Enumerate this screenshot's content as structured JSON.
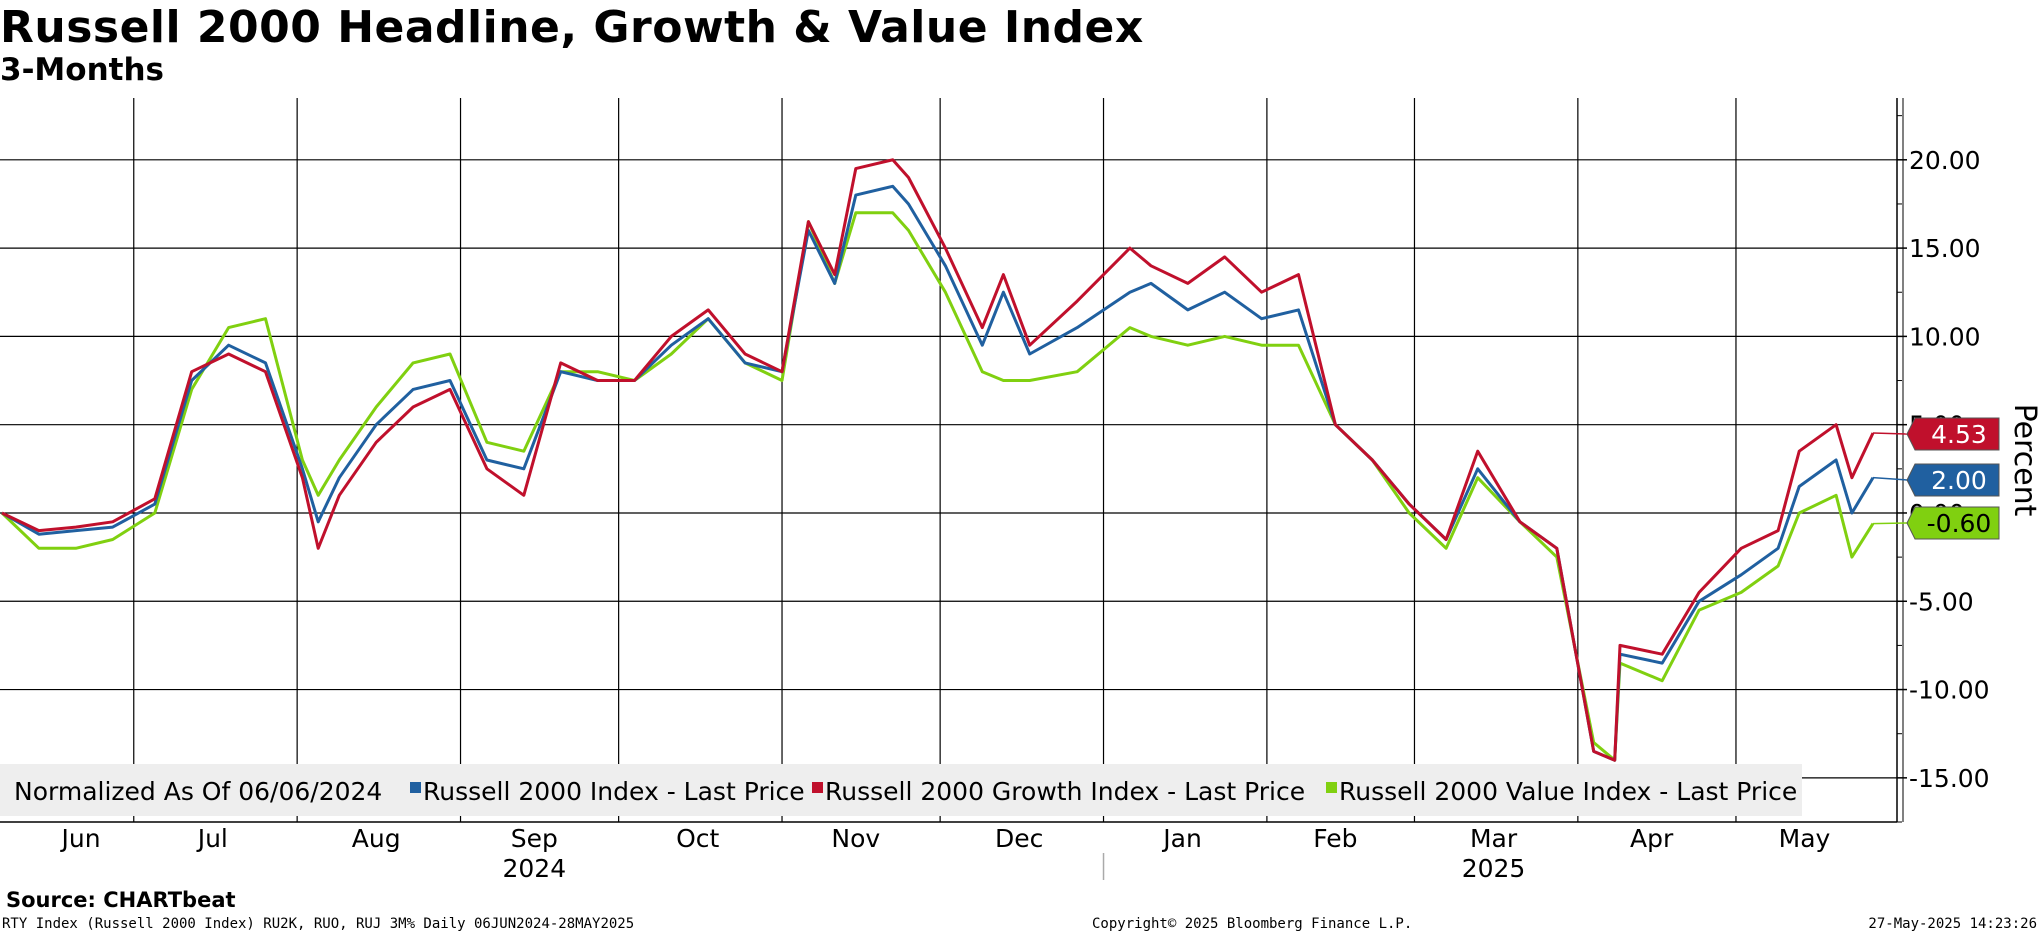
{
  "title": "Russell 2000 Headline, Growth & Value Index",
  "subtitle": "3-Months",
  "source": "Source: CHARTbeat",
  "footer": {
    "left": "RTY Index (Russell 2000 Index) RU2K, RUO, RUJ 3M%  Daily 06JUN2024-28MAY2025",
    "center": "Copyright© 2025 Bloomberg Finance L.P.",
    "right": "27-May-2025 14:23:26"
  },
  "colors": {
    "headline": "#2060a0",
    "growth": "#c0102c",
    "value": "#80d010"
  },
  "chart_data": {
    "type": "line",
    "ylabel": "Percent",
    "ylim": [
      -17.5,
      23.5
    ],
    "y_ticks": [
      "20.00",
      "15.00",
      "10.00",
      "5.00",
      "0.00",
      "-5.00",
      "-10.00",
      "-15.00"
    ],
    "y_tick_values": [
      20,
      15,
      10,
      5,
      0,
      -5,
      -10,
      -15
    ],
    "x_ticks": [
      "Jun",
      "Jul",
      "Aug",
      "Sep",
      "Oct",
      "Nov",
      "Dec",
      "Jan",
      "Feb",
      "Mar",
      "Apr",
      "May"
    ],
    "year_labels": [
      "2024",
      "2025"
    ],
    "legend": {
      "prefix": "Normalized As Of 06/06/2024",
      "position": "bottom-left"
    },
    "last_values": {
      "growth": "4.53",
      "headline": "2.00",
      "value": "-0.60"
    },
    "x": [
      "2024-06-06",
      "2024-06-13",
      "2024-06-20",
      "2024-06-27",
      "2024-07-05",
      "2024-07-12",
      "2024-07-19",
      "2024-07-26",
      "2024-08-02",
      "2024-08-05",
      "2024-08-09",
      "2024-08-16",
      "2024-08-23",
      "2024-08-30",
      "2024-09-06",
      "2024-09-13",
      "2024-09-20",
      "2024-09-27",
      "2024-10-04",
      "2024-10-11",
      "2024-10-18",
      "2024-10-25",
      "2024-11-01",
      "2024-11-06",
      "2024-11-11",
      "2024-11-15",
      "2024-11-22",
      "2024-11-25",
      "2024-12-02",
      "2024-12-09",
      "2024-12-13",
      "2024-12-18",
      "2024-12-27",
      "2025-01-06",
      "2025-01-10",
      "2025-01-17",
      "2025-01-24",
      "2025-01-31",
      "2025-02-07",
      "2025-02-14",
      "2025-02-21",
      "2025-02-28",
      "2025-03-07",
      "2025-03-13",
      "2025-03-21",
      "2025-03-28",
      "2025-04-04",
      "2025-04-08",
      "2025-04-09",
      "2025-04-17",
      "2025-04-24",
      "2025-05-02",
      "2025-05-09",
      "2025-05-13",
      "2025-05-20",
      "2025-05-23",
      "2025-05-27"
    ],
    "series": [
      {
        "name": "Russell 2000 Index - Last Price",
        "key": "headline",
        "values": [
          0,
          -1.2,
          -1.0,
          -0.8,
          0.5,
          7.5,
          9.5,
          8.5,
          2.5,
          -0.5,
          2.0,
          5.0,
          7.0,
          7.5,
          3.0,
          2.5,
          8.0,
          7.5,
          7.5,
          9.5,
          11.0,
          8.5,
          8.0,
          16.0,
          13.0,
          18.0,
          18.5,
          17.5,
          14.0,
          9.5,
          12.5,
          9.0,
          10.5,
          12.5,
          13.0,
          11.5,
          12.5,
          11.0,
          11.5,
          5.0,
          3.0,
          0.5,
          -1.5,
          2.5,
          -0.5,
          -2.0,
          -13.5,
          -14.0,
          -8.0,
          -8.5,
          -5.0,
          -3.5,
          -2.0,
          1.5,
          3.0,
          0.0,
          2.0
        ]
      },
      {
        "name": "Russell 2000 Growth Index - Last Price",
        "key": "growth",
        "values": [
          0,
          -1.0,
          -0.8,
          -0.5,
          0.8,
          8.0,
          9.0,
          8.0,
          2.0,
          -2.0,
          1.0,
          4.0,
          6.0,
          7.0,
          2.5,
          1.0,
          8.5,
          7.5,
          7.5,
          10.0,
          11.5,
          9.0,
          8.0,
          16.5,
          13.5,
          19.5,
          20.0,
          19.0,
          15.0,
          10.5,
          13.5,
          9.5,
          12.0,
          15.0,
          14.0,
          13.0,
          14.5,
          12.5,
          13.5,
          5.0,
          3.0,
          0.5,
          -1.5,
          3.5,
          -0.5,
          -2.0,
          -13.5,
          -14.0,
          -7.5,
          -8.0,
          -4.5,
          -2.0,
          -1.0,
          3.5,
          5.0,
          2.0,
          4.53
        ]
      },
      {
        "name": "Russell 2000 Value Index - Last Price",
        "key": "value",
        "values": [
          0,
          -2.0,
          -2.0,
          -1.5,
          0.0,
          7.0,
          10.5,
          11.0,
          3.0,
          1.0,
          3.0,
          6.0,
          8.5,
          9.0,
          4.0,
          3.5,
          8.0,
          8.0,
          7.5,
          9.0,
          11.0,
          8.5,
          7.5,
          16.5,
          13.0,
          17.0,
          17.0,
          16.0,
          12.5,
          8.0,
          7.5,
          7.5,
          8.0,
          10.5,
          10.0,
          9.5,
          10.0,
          9.5,
          9.5,
          5.0,
          3.0,
          0.0,
          -2.0,
          2.0,
          -0.5,
          -2.5,
          -13.0,
          -14.0,
          -8.5,
          -9.5,
          -5.5,
          -4.5,
          -3.0,
          0.0,
          1.0,
          -2.5,
          -0.6
        ]
      }
    ]
  }
}
